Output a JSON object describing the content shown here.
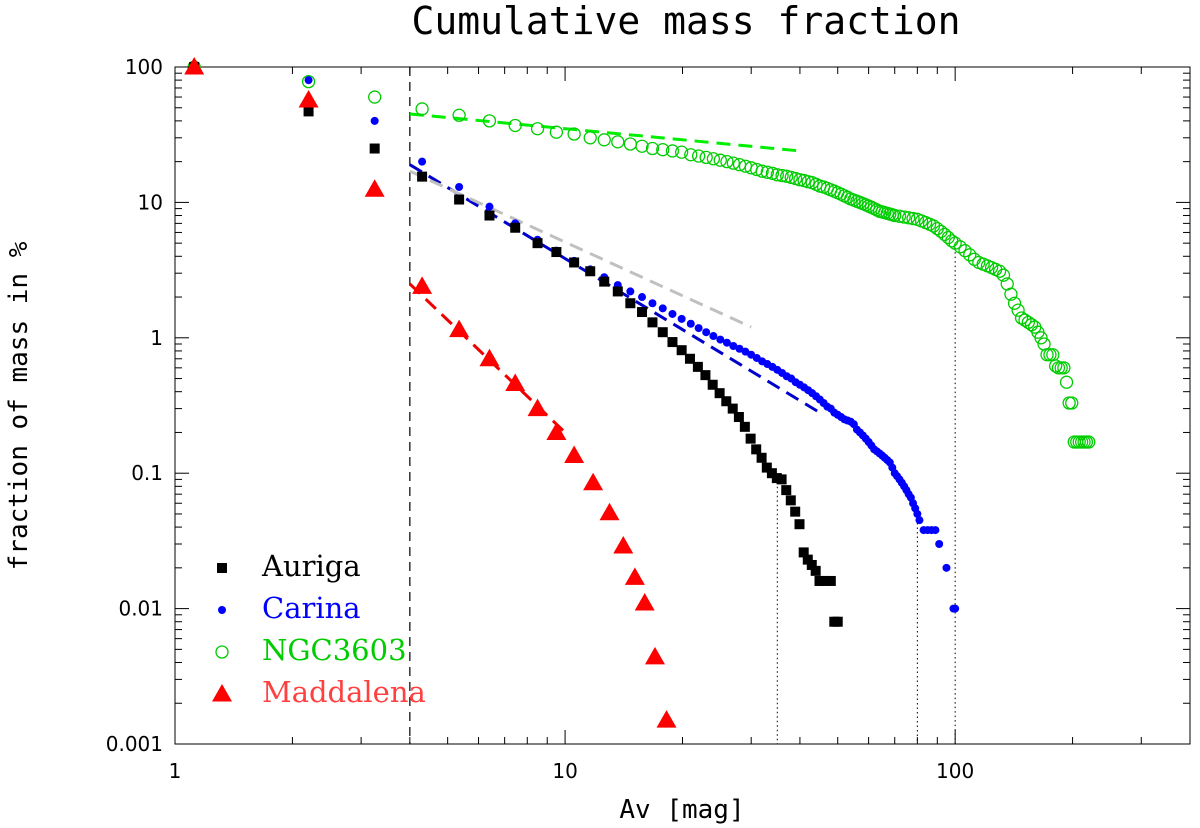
{
  "chart_data": {
    "type": "scatter",
    "title": "Cumulative mass fraction",
    "xlabel": "Av [mag]",
    "ylabel": "fraction of mass in %",
    "xscale": "log",
    "yscale": "log",
    "xlim": [
      1,
      400
    ],
    "ylim": [
      0.001,
      100
    ],
    "x_ticks": [
      {
        "v": 1,
        "label": "1"
      },
      {
        "v": 10,
        "label": "10"
      },
      {
        "v": 100,
        "label": "100"
      }
    ],
    "y_ticks": [
      {
        "v": 100,
        "label": "100"
      },
      {
        "v": 10,
        "label": "10"
      },
      {
        "v": 1,
        "label": "1"
      },
      {
        "v": 0.1,
        "label": "0.1"
      },
      {
        "v": 0.01,
        "label": "0.01"
      },
      {
        "v": 0.001,
        "label": "0.001"
      }
    ],
    "legend_position": "bottom-left",
    "threshold_line": {
      "x": 4,
      "style": "dashed"
    },
    "vertical_markers": [
      {
        "series": "Auriga",
        "x": 35,
        "y_top": 0.1
      },
      {
        "series": "Carina",
        "x": 80,
        "y_top": 0.05
      },
      {
        "series": "NGC3603",
        "x": 100,
        "y_top": 5
      }
    ],
    "series": [
      {
        "name": "Auriga",
        "color": "#000000",
        "marker": "square",
        "points": [
          [
            1.12,
            100
          ],
          [
            2.2,
            47
          ],
          [
            3.25,
            25
          ],
          [
            4.3,
            15.5
          ],
          [
            5.35,
            10.5
          ],
          [
            6.4,
            8.0
          ],
          [
            7.45,
            6.5
          ],
          [
            8.5,
            5.0
          ],
          [
            9.5,
            4.3
          ],
          [
            10.55,
            3.6
          ],
          [
            11.6,
            3.1
          ],
          [
            12.6,
            2.6
          ],
          [
            13.65,
            2.2
          ],
          [
            14.7,
            1.8
          ],
          [
            15.75,
            1.55
          ],
          [
            16.75,
            1.3
          ],
          [
            17.8,
            1.1
          ],
          [
            18.85,
            0.93
          ],
          [
            19.9,
            0.81
          ],
          [
            20.9,
            0.7
          ],
          [
            21.9,
            0.61
          ],
          [
            22.9,
            0.53
          ],
          [
            23.9,
            0.45
          ],
          [
            24.9,
            0.39
          ],
          [
            25.9,
            0.34
          ],
          [
            26.9,
            0.3
          ],
          [
            27.9,
            0.26
          ],
          [
            28.9,
            0.22
          ],
          [
            29.9,
            0.18
          ],
          [
            30.9,
            0.15
          ],
          [
            31.9,
            0.13
          ],
          [
            32.9,
            0.11
          ],
          [
            33.9,
            0.1
          ],
          [
            34.9,
            0.092
          ],
          [
            35.9,
            0.09
          ],
          [
            36.9,
            0.075
          ],
          [
            37.9,
            0.063
          ],
          [
            38.9,
            0.052
          ],
          [
            39.9,
            0.042
          ],
          [
            40.9,
            0.026
          ],
          [
            41.9,
            0.023
          ],
          [
            42.9,
            0.021
          ],
          [
            43.9,
            0.019
          ],
          [
            44.9,
            0.016
          ],
          [
            46.0,
            0.016
          ],
          [
            48.0,
            0.016
          ],
          [
            49.0,
            0.008
          ],
          [
            50.0,
            0.008
          ]
        ]
      },
      {
        "name": "Carina",
        "color": "#0000ff",
        "marker": "dot",
        "points": [
          [
            1.12,
            100
          ],
          [
            2.2,
            80
          ],
          [
            3.25,
            40
          ],
          [
            4.3,
            20
          ],
          [
            5.35,
            13
          ],
          [
            6.4,
            9.3
          ],
          [
            7.45,
            7.0
          ],
          [
            8.5,
            5.3
          ],
          [
            9.5,
            4.4
          ],
          [
            10.55,
            3.7
          ],
          [
            11.6,
            3.2
          ],
          [
            12.6,
            2.8
          ],
          [
            13.65,
            2.45
          ],
          [
            14.7,
            2.2
          ],
          [
            15.75,
            2.0
          ],
          [
            16.75,
            1.8
          ],
          [
            17.8,
            1.65
          ],
          [
            18.85,
            1.5
          ],
          [
            19.9,
            1.38
          ],
          [
            21.0,
            1.27
          ],
          [
            22.0,
            1.18
          ],
          [
            23.0,
            1.1
          ],
          [
            24.0,
            1.03
          ],
          [
            25.0,
            0.97
          ],
          [
            26.0,
            0.92
          ],
          [
            27.0,
            0.87
          ],
          [
            28.0,
            0.83
          ],
          [
            29.0,
            0.79
          ],
          [
            30.0,
            0.75
          ],
          [
            31.0,
            0.71
          ],
          [
            32.0,
            0.67
          ],
          [
            33.0,
            0.64
          ],
          [
            34.0,
            0.61
          ],
          [
            35.0,
            0.58
          ],
          [
            36.0,
            0.55
          ],
          [
            37.0,
            0.52
          ],
          [
            38.0,
            0.5
          ],
          [
            39.0,
            0.47
          ],
          [
            40.0,
            0.45
          ],
          [
            41.0,
            0.43
          ],
          [
            42.0,
            0.41
          ],
          [
            43.0,
            0.39
          ],
          [
            44.0,
            0.37
          ],
          [
            45.0,
            0.35
          ],
          [
            46.0,
            0.33
          ],
          [
            47.0,
            0.31
          ],
          [
            48.0,
            0.3
          ],
          [
            49.0,
            0.28
          ],
          [
            50.0,
            0.27
          ],
          [
            51.0,
            0.26
          ],
          [
            52.0,
            0.25
          ],
          [
            53.0,
            0.245
          ],
          [
            54.0,
            0.24
          ],
          [
            55.0,
            0.23
          ],
          [
            56.0,
            0.21
          ],
          [
            57.0,
            0.2
          ],
          [
            58.0,
            0.19
          ],
          [
            59.0,
            0.18
          ],
          [
            60.0,
            0.17
          ],
          [
            61.0,
            0.16
          ],
          [
            62.0,
            0.15
          ],
          [
            63.0,
            0.145
          ],
          [
            64.0,
            0.14
          ],
          [
            65.0,
            0.135
          ],
          [
            66.0,
            0.13
          ],
          [
            67.0,
            0.125
          ],
          [
            68.0,
            0.12
          ],
          [
            69.0,
            0.11
          ],
          [
            70.0,
            0.1
          ],
          [
            71.0,
            0.095
          ],
          [
            72.0,
            0.09
          ],
          [
            73.0,
            0.085
          ],
          [
            74.0,
            0.08
          ],
          [
            75.0,
            0.075
          ],
          [
            76.0,
            0.07
          ],
          [
            77.0,
            0.066
          ],
          [
            78.0,
            0.06
          ],
          [
            79.0,
            0.055
          ],
          [
            80.0,
            0.05
          ],
          [
            81.0,
            0.045
          ],
          [
            83.0,
            0.038
          ],
          [
            85.0,
            0.038
          ],
          [
            87.0,
            0.038
          ],
          [
            89.0,
            0.038
          ],
          [
            91.0,
            0.03
          ],
          [
            95.0,
            0.02
          ],
          [
            99.0,
            0.01
          ],
          [
            100.0,
            0.01
          ]
        ]
      },
      {
        "name": "NGC3603",
        "color": "#00cc00",
        "marker": "circle-open",
        "points": [
          [
            1.12,
            100
          ],
          [
            2.2,
            78
          ],
          [
            3.25,
            60
          ],
          [
            4.3,
            49
          ],
          [
            5.35,
            44
          ],
          [
            6.4,
            40
          ],
          [
            7.45,
            37
          ],
          [
            8.5,
            35
          ],
          [
            9.5,
            33
          ],
          [
            10.55,
            32
          ],
          [
            11.6,
            30
          ],
          [
            12.6,
            29
          ],
          [
            13.65,
            28
          ],
          [
            14.7,
            27
          ],
          [
            15.75,
            26
          ],
          [
            16.75,
            25
          ],
          [
            17.8,
            24.5
          ],
          [
            18.85,
            24
          ],
          [
            19.9,
            23.5
          ],
          [
            21.0,
            22.5
          ],
          [
            22.0,
            22
          ],
          [
            23.0,
            21.5
          ],
          [
            24.0,
            21
          ],
          [
            25.0,
            20.5
          ],
          [
            26.0,
            20
          ],
          [
            27.0,
            19.5
          ],
          [
            28.0,
            19
          ],
          [
            29.0,
            18.5
          ],
          [
            30.0,
            18
          ],
          [
            31.0,
            17.5
          ],
          [
            32.0,
            17
          ],
          [
            33.0,
            16.7
          ],
          [
            34.0,
            16.4
          ],
          [
            35.0,
            16
          ],
          [
            36.0,
            15.8
          ],
          [
            37.0,
            15.6
          ],
          [
            38.0,
            15.3
          ],
          [
            39.0,
            15
          ],
          [
            40.0,
            14.7
          ],
          [
            41.0,
            14.5
          ],
          [
            42.0,
            14.2
          ],
          [
            43.0,
            14
          ],
          [
            44.0,
            13.6
          ],
          [
            45.0,
            13.2
          ],
          [
            46.0,
            13
          ],
          [
            47.0,
            12.7
          ],
          [
            48.0,
            12.4
          ],
          [
            49.0,
            12.1
          ],
          [
            50.0,
            11.8
          ],
          [
            51.0,
            11.5
          ],
          [
            52.0,
            11.2
          ],
          [
            53.0,
            10.9
          ],
          [
            54.0,
            10.6
          ],
          [
            55.0,
            10.4
          ],
          [
            56.0,
            10.2
          ],
          [
            57.0,
            10.0
          ],
          [
            58.0,
            9.8
          ],
          [
            59.0,
            9.6
          ],
          [
            60.0,
            9.4
          ],
          [
            61.0,
            9.2
          ],
          [
            62.0,
            9.0
          ],
          [
            63.0,
            8.8
          ],
          [
            64.0,
            8.6
          ],
          [
            65.0,
            8.5
          ],
          [
            66.0,
            8.4
          ],
          [
            67.0,
            8.3
          ],
          [
            68.0,
            8.2
          ],
          [
            69.0,
            8.1
          ],
          [
            70.0,
            8.0
          ],
          [
            72.0,
            7.9
          ],
          [
            74.0,
            7.8
          ],
          [
            76.0,
            7.7
          ],
          [
            78.0,
            7.6
          ],
          [
            80.0,
            7.5
          ],
          [
            82.0,
            7.3
          ],
          [
            84.0,
            7.1
          ],
          [
            86.0,
            6.9
          ],
          [
            88.0,
            6.7
          ],
          [
            90.0,
            6.4
          ],
          [
            92.0,
            6.1
          ],
          [
            94.0,
            5.8
          ],
          [
            96.0,
            5.5
          ],
          [
            98.0,
            5.2
          ],
          [
            100.0,
            5.0
          ],
          [
            103.0,
            4.7
          ],
          [
            106.0,
            4.4
          ],
          [
            109.0,
            4.1
          ],
          [
            112.0,
            3.8
          ],
          [
            115.0,
            3.6
          ],
          [
            118.0,
            3.5
          ],
          [
            121.0,
            3.4
          ],
          [
            124.0,
            3.3
          ],
          [
            127.0,
            3.2
          ],
          [
            130.0,
            3.1
          ],
          [
            133.0,
            2.9
          ],
          [
            136.0,
            2.5
          ],
          [
            139.0,
            2.1
          ],
          [
            142.0,
            1.8
          ],
          [
            145.0,
            1.6
          ],
          [
            148.0,
            1.4
          ],
          [
            151.0,
            1.35
          ],
          [
            154.0,
            1.3
          ],
          [
            157.0,
            1.25
          ],
          [
            160.0,
            1.2
          ],
          [
            163.0,
            1.1
          ],
          [
            166.0,
            1.0
          ],
          [
            169.0,
            0.9
          ],
          [
            172.0,
            0.75
          ],
          [
            175.0,
            0.75
          ],
          [
            178.0,
            0.75
          ],
          [
            181.0,
            0.62
          ],
          [
            184.0,
            0.6
          ],
          [
            187.0,
            0.6
          ],
          [
            190.0,
            0.6
          ],
          [
            193.0,
            0.47
          ],
          [
            196.0,
            0.33
          ],
          [
            199.0,
            0.33
          ],
          [
            202.0,
            0.17
          ],
          [
            205.0,
            0.17
          ],
          [
            208.0,
            0.17
          ],
          [
            211.0,
            0.17
          ],
          [
            214.0,
            0.17
          ],
          [
            217.0,
            0.17
          ],
          [
            220.0,
            0.17
          ]
        ]
      },
      {
        "name": "Maddalena",
        "color": "#ff0000",
        "legend_color": "#ff4040",
        "marker": "triangle",
        "points": [
          [
            1.12,
            100
          ],
          [
            2.2,
            57
          ],
          [
            3.25,
            12.5
          ],
          [
            4.3,
            2.4
          ],
          [
            5.35,
            1.15
          ],
          [
            6.4,
            0.7
          ],
          [
            7.45,
            0.46
          ],
          [
            8.5,
            0.3
          ],
          [
            9.5,
            0.2
          ],
          [
            10.55,
            0.135
          ],
          [
            11.8,
            0.085
          ],
          [
            13.0,
            0.051
          ],
          [
            14.1,
            0.029
          ],
          [
            15.1,
            0.017
          ],
          [
            16.0,
            0.011
          ],
          [
            17.0,
            0.0044
          ],
          [
            18.2,
            0.0015
          ]
        ]
      }
    ],
    "fits": [
      {
        "series": "NGC3603",
        "color": "#00ee00",
        "from": [
          4.0,
          45
        ],
        "to": [
          40.0,
          24
        ]
      },
      {
        "series": "Carina",
        "color": "#0000cc",
        "from": [
          4.0,
          19
        ],
        "to": [
          45.0,
          0.28
        ]
      },
      {
        "series": "Auriga",
        "color": "#c0c0c0",
        "from": [
          4.0,
          17
        ],
        "to": [
          30.0,
          1.2
        ]
      },
      {
        "series": "Maddalena",
        "color": "#ee0000",
        "from": [
          4.0,
          2.5
        ],
        "to": [
          10.0,
          0.2
        ]
      }
    ]
  }
}
